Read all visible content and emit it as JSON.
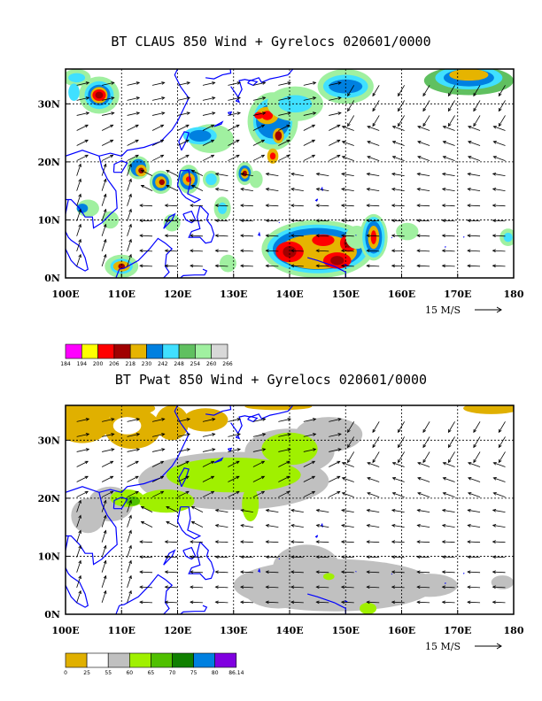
{
  "panels": [
    {
      "title": "BT CLAUS 850 Wind + Gyrelocs 020601/0000",
      "lon_ticks": [
        "100E",
        "110E",
        "120E",
        "130E",
        "140E",
        "150E",
        "160E",
        "170E",
        "180"
      ],
      "lat_ticks": [
        "0N",
        "10N",
        "20N",
        "30N"
      ],
      "ref_vector": "15 M/S",
      "colorbar": {
        "values": [
          "184",
          "194",
          "200",
          "206",
          "218",
          "230",
          "242",
          "248",
          "254",
          "260",
          "266"
        ],
        "colors": [
          "#ff00ff",
          "#ffff00",
          "#ff0000",
          "#a00000",
          "#e6b400",
          "#0080e0",
          "#40e0ff",
          "#60c060",
          "#a0f0a0",
          "#d8d8d8"
        ]
      }
    },
    {
      "title": "BT Pwat 850 Wind + Gyrelocs 020601/0000",
      "lon_ticks": [
        "100E",
        "110E",
        "120E",
        "130E",
        "140E",
        "150E",
        "160E",
        "170E",
        "180"
      ],
      "lat_ticks": [
        "0N",
        "10N",
        "20N",
        "30N"
      ],
      "ref_vector": "15 M/S",
      "colorbar": {
        "values": [
          "0",
          "25",
          "55",
          "60",
          "65",
          "70",
          "75",
          "80",
          "86.14"
        ],
        "colors": [
          "#e0b000",
          "#ffffff",
          "#c0c0c0",
          "#a0f000",
          "#50c000",
          "#108000",
          "#0080e0",
          "#8000e0"
        ]
      }
    }
  ],
  "map": {
    "lon_range": [
      100,
      180
    ],
    "lat_range": [
      0,
      36
    ],
    "coast_color": "#0000ff",
    "grid_style": "dashed"
  }
}
